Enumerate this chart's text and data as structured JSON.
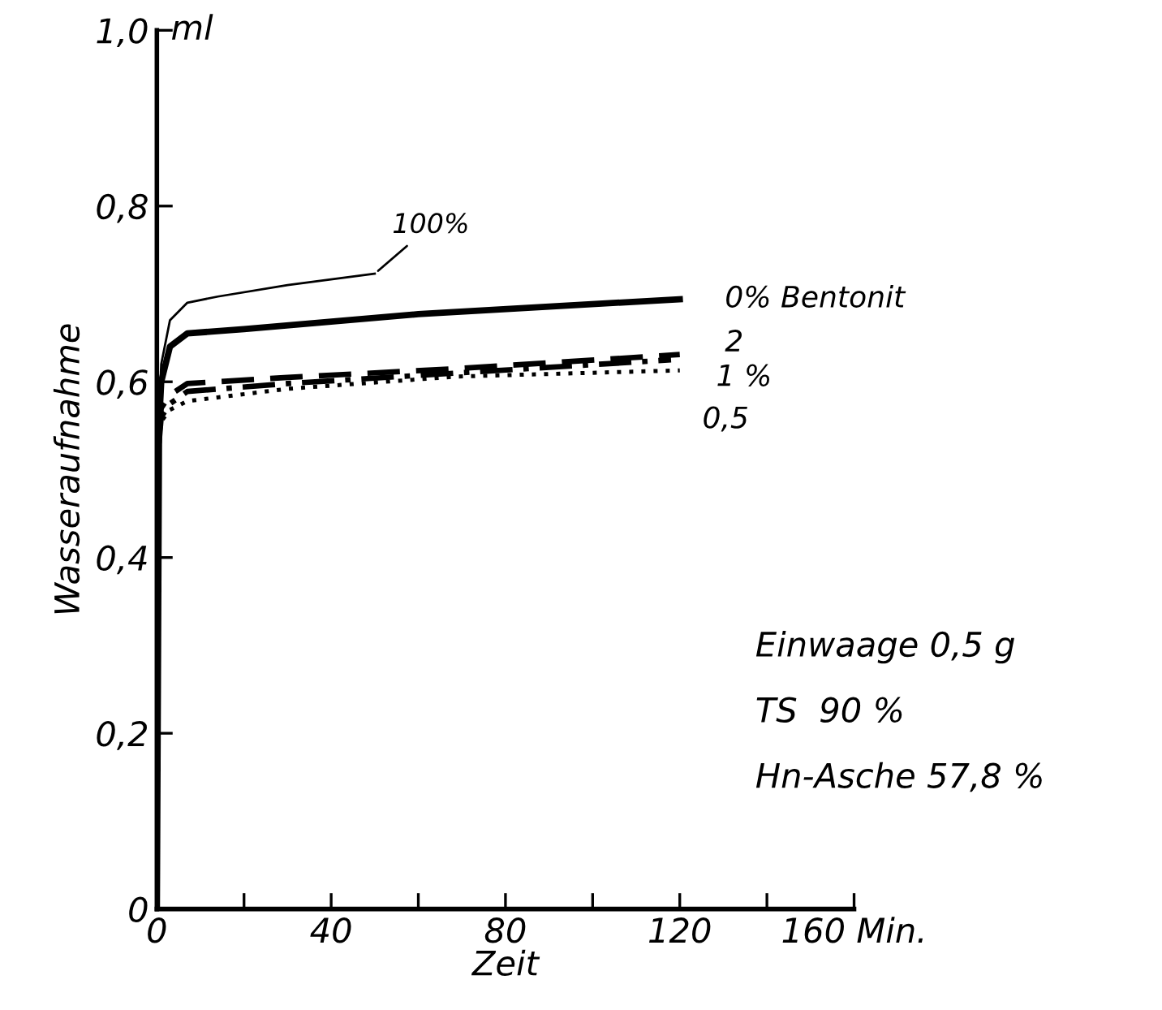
{
  "chart_data": {
    "type": "line",
    "xlabel": "Zeit",
    "ylabel": "Wasseraufnahme",
    "xlim": [
      0,
      160
    ],
    "ylim": [
      0,
      1.0
    ],
    "xticks": [
      0,
      {
        "value": 20,
        "label": null
      },
      {
        "value": 40,
        "label": "40"
      },
      {
        "value": 60,
        "label": null
      },
      80,
      {
        "value": 100,
        "label": null
      },
      120,
      {
        "value": 140,
        "label": null
      },
      {
        "value": 160,
        "label": "160 Min."
      }
    ],
    "yticks": [
      0,
      {
        "value": 0.2,
        "label": "0,2"
      },
      {
        "value": 0.4,
        "label": "0,4"
      },
      {
        "value": 0.6,
        "label": "0,6"
      },
      {
        "value": 0.8,
        "label": "0,8"
      },
      {
        "value": 1.0,
        "label": "1,0"
      }
    ],
    "grid": false,
    "legend": false,
    "marker": "none",
    "series": [
      {
        "name": "100%",
        "color": "#000000",
        "line_style": "solid",
        "x": [
          0.5,
          1,
          3,
          7,
          14,
          30,
          50
        ],
        "values": [
          0.56,
          0.62,
          0.67,
          0.69,
          0.697,
          0.71,
          0.723
        ]
      },
      {
        "name": "0% Bentonit",
        "color": "#000000",
        "line_style": "solid",
        "x": [
          0,
          0.5,
          1,
          3,
          7,
          20,
          60,
          120
        ],
        "values": [
          0,
          0.55,
          0.6,
          0.64,
          0.655,
          0.66,
          0.677,
          0.694
        ]
      },
      {
        "name": "2",
        "color": "#000000",
        "line_style": "dashed",
        "x": [
          0.5,
          1,
          3,
          7,
          30,
          69,
          120
        ],
        "values": [
          0.54,
          0.57,
          0.585,
          0.598,
          0.605,
          0.615,
          0.631
        ]
      },
      {
        "name": "1 %",
        "color": "#000000",
        "line_style": "dashdot",
        "x": [
          0.5,
          1,
          3,
          7,
          30,
          69,
          118
        ],
        "values": [
          0.53,
          0.56,
          0.575,
          0.589,
          0.598,
          0.61,
          0.625
        ]
      },
      {
        "name": "0,5",
        "color": "#000000",
        "line_style": "dotted",
        "x": [
          0.5,
          1,
          3,
          7,
          30,
          69,
          120
        ],
        "values": [
          0.53,
          0.555,
          0.568,
          0.578,
          0.592,
          0.606,
          0.613
        ]
      }
    ],
    "annotations": [
      "ml",
      "Einwaage 0,5 g",
      "TS  90 %",
      "Hn-Asche 57,8 %"
    ]
  }
}
